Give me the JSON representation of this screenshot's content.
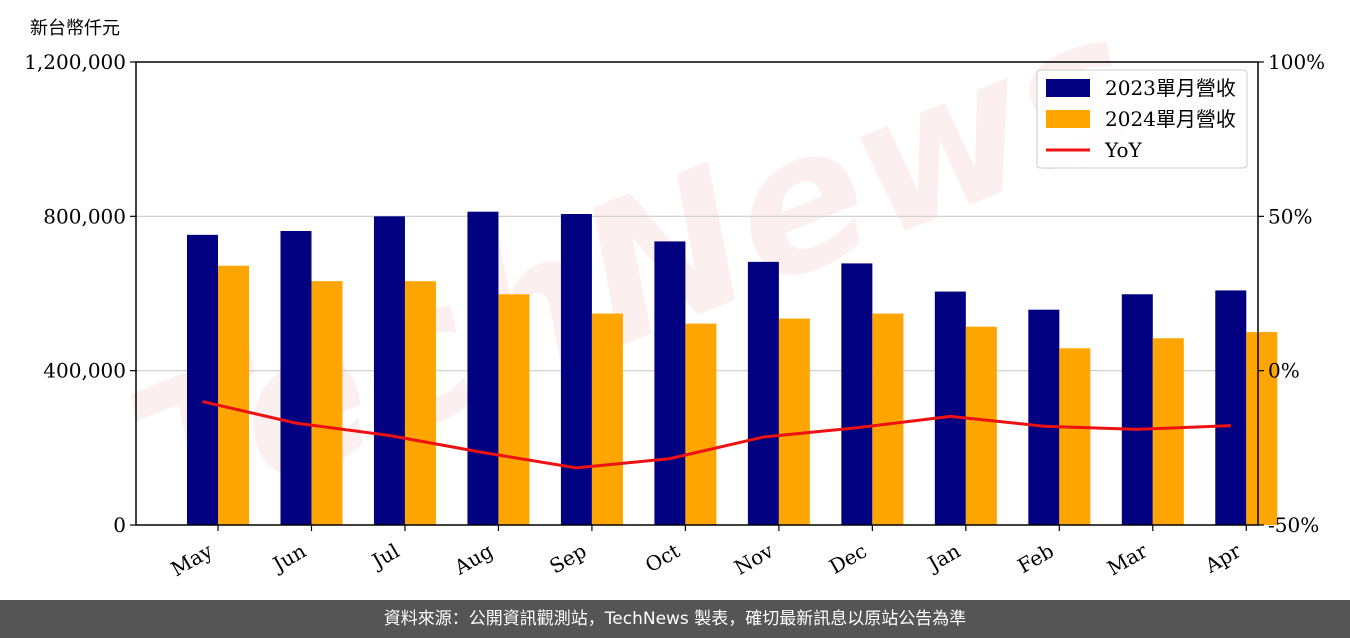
{
  "unit_label": "新台幣仟元",
  "footer_text": "資料來源：公開資訊觀測站，TechNews 製表，確切最新訊息以原站公告為準",
  "watermark": "TechNews",
  "chart_data": {
    "type": "bar",
    "categories": [
      "May",
      "Jun",
      "Jul",
      "Aug",
      "Sep",
      "Oct",
      "Nov",
      "Dec",
      "Jan",
      "Feb",
      "Mar",
      "Apr"
    ],
    "series": [
      {
        "name": "2023單月營收",
        "type": "bar",
        "color": "#000080",
        "values": [
          752000,
          762000,
          800000,
          812000,
          806000,
          735000,
          682000,
          678000,
          605000,
          558000,
          598000,
          608000
        ]
      },
      {
        "name": "2024單月營收",
        "type": "bar",
        "color": "#FFA500",
        "values": [
          672000,
          632000,
          632000,
          598000,
          548000,
          522000,
          535000,
          548000,
          514000,
          458000,
          484000,
          500000
        ]
      },
      {
        "name": "YoY",
        "type": "line",
        "axis": "right",
        "color": "#EE1111",
        "values": [
          -10.0,
          -17.0,
          -21.0,
          -26.5,
          -31.5,
          -28.5,
          -21.5,
          -18.5,
          -14.8,
          -18.0,
          -19.0,
          -17.8
        ]
      }
    ],
    "ylim": [
      0,
      1200000
    ],
    "yticks": [
      0,
      400000,
      800000,
      1200000
    ],
    "ytick_labels": [
      "0",
      "400,000",
      "800,000",
      "1,200,000"
    ],
    "y2lim": [
      -50,
      100
    ],
    "y2ticks": [
      -50,
      0,
      50,
      100
    ],
    "y2tick_labels": [
      "-50%",
      "0%",
      "50%",
      "100%"
    ],
    "grid": true,
    "legend_position": "top-right"
  }
}
